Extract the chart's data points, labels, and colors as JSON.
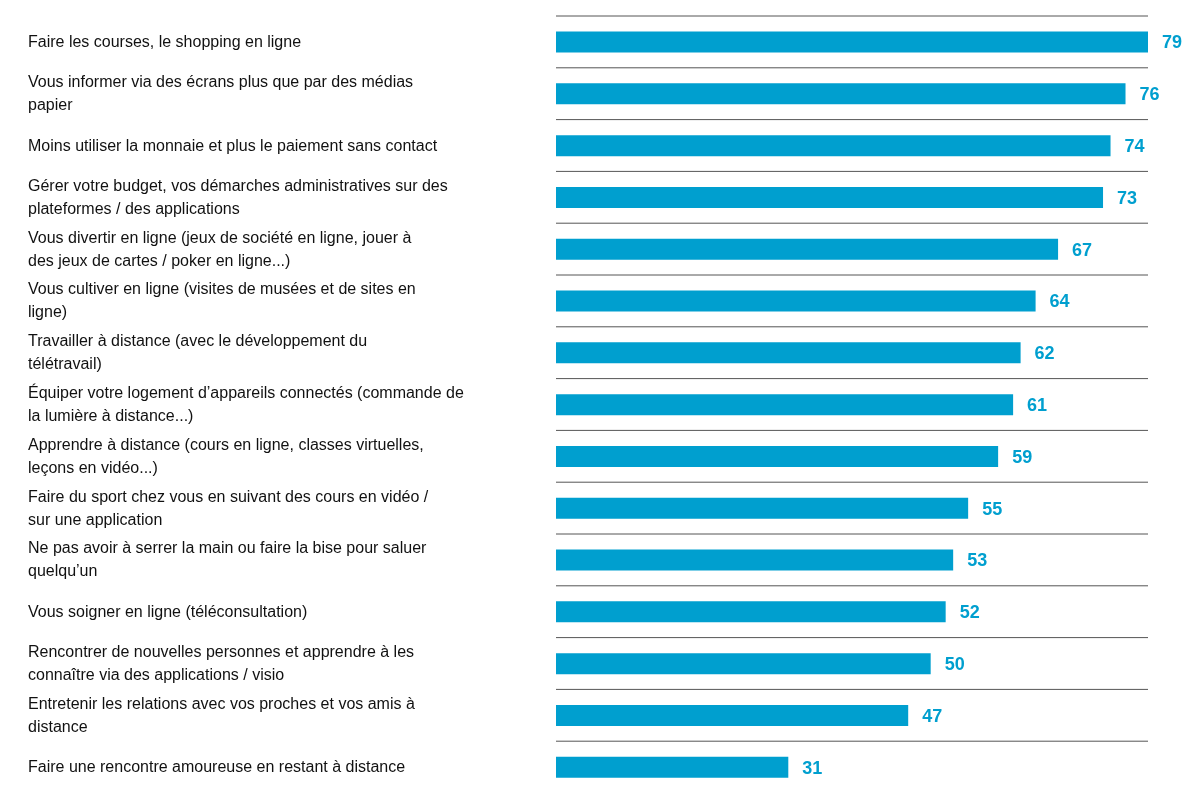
{
  "chart_data": {
    "type": "bar",
    "orientation": "horizontal",
    "categories": [
      "Faire les courses, le shopping en ligne",
      "Vous informer via des écrans plus que par des médias papier",
      "Moins utiliser la monnaie et plus le paiement sans contact",
      "Gérer votre budget, vos démarches administratives sur des plateformes / des applications",
      "Vous divertir en ligne (jeux de société en ligne, jouer à des jeux de cartes / poker en ligne...)",
      "Vous cultiver en ligne (visites de musées et de sites en ligne)",
      "Travailler à distance (avec le développement du télétravail)",
      "Équiper votre logement d’appareils connectés (commande de la lumière à distance...)",
      "Apprendre à distance (cours en ligne, classes virtuelles, leçons en vidéo...)",
      "Faire du sport chez vous en suivant des cours en vidéo / sur une application",
      "Ne pas avoir à serrer la main ou faire la bise pour saluer quelqu’un",
      "Vous soigner en ligne (téléconsultation)",
      "Rencontrer de nouvelles personnes et apprendre à les connaître via des applications / visio",
      "Entretenir les relations avec vos proches et vos amis à distance",
      "Faire une rencontre amoureuse en restant à distance"
    ],
    "values": [
      79,
      76,
      74,
      73,
      67,
      64,
      62,
      61,
      59,
      55,
      53,
      52,
      50,
      47,
      31
    ],
    "color": "#009fcf",
    "data_labels": true,
    "grid": "y"
  }
}
